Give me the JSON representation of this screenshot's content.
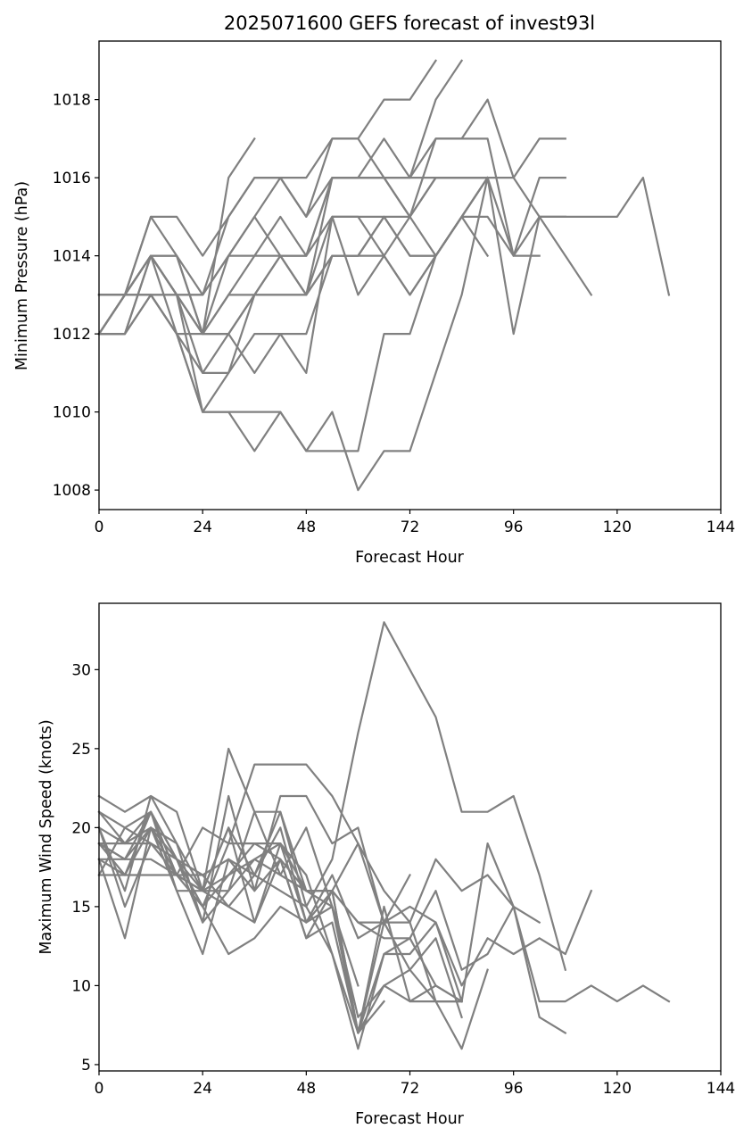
{
  "colors": {
    "series_line": "#808080",
    "axes": "#000000",
    "background": "#ffffff"
  },
  "chart_data": [
    {
      "type": "line",
      "title": "2025071600 GEFS forecast of invest93l",
      "xlabel": "Forecast Hour",
      "ylabel": "Minimum Pressure (hPa)",
      "xlim": [
        0,
        144
      ],
      "ylim": [
        1007.5,
        1019.5
      ],
      "xticks": [
        0,
        24,
        48,
        72,
        96,
        120,
        144
      ],
      "yticks": [
        1008,
        1010,
        1012,
        1014,
        1016,
        1018
      ],
      "grid": false,
      "series": [
        {
          "x": [
            0,
            6,
            12,
            18,
            24,
            30,
            36
          ],
          "y": [
            1012,
            1012,
            1014,
            1014,
            1012,
            1016,
            1017
          ]
        },
        {
          "x": [
            0,
            6,
            12,
            18,
            24,
            30,
            36,
            42,
            48,
            54,
            60,
            66,
            72,
            78
          ],
          "y": [
            1013,
            1013,
            1015,
            1015,
            1014,
            1015,
            1016,
            1016,
            1016,
            1017,
            1017,
            1018,
            1018,
            1019
          ]
        },
        {
          "x": [
            0,
            6,
            12,
            18,
            24,
            30,
            36,
            42,
            48,
            54,
            60,
            66,
            72,
            78,
            84
          ],
          "y": [
            1012,
            1013,
            1014,
            1013,
            1012,
            1014,
            1015,
            1016,
            1015,
            1016,
            1016,
            1017,
            1016,
            1018,
            1019
          ]
        },
        {
          "x": [
            0,
            6,
            12,
            18,
            24,
            30,
            36,
            42,
            48,
            54,
            60,
            66,
            72,
            78,
            84,
            90,
            96,
            102,
            108
          ],
          "y": [
            1012,
            1013,
            1015,
            1014,
            1013,
            1015,
            1016,
            1016,
            1015,
            1017,
            1017,
            1016,
            1016,
            1017,
            1017,
            1018,
            1016,
            1017,
            1017
          ]
        },
        {
          "x": [
            0,
            6,
            12,
            18,
            24,
            30,
            36,
            42,
            48,
            54,
            60,
            66,
            72,
            78,
            84,
            90,
            96,
            102,
            108,
            114,
            120,
            126,
            132
          ],
          "y": [
            1012,
            1013,
            1014,
            1012,
            1012,
            1013,
            1014,
            1015,
            1014,
            1016,
            1016,
            1016,
            1016,
            1016,
            1016,
            1016,
            1016,
            1015,
            1015,
            1015,
            1015,
            1016,
            1013
          ]
        },
        {
          "x": [
            0,
            6,
            12,
            18,
            24,
            30,
            36,
            42,
            48,
            54,
            60,
            66,
            72,
            78,
            84,
            90,
            96,
            102,
            108
          ],
          "y": [
            1013,
            1013,
            1014,
            1013,
            1012,
            1013,
            1013,
            1014,
            1013,
            1015,
            1015,
            1015,
            1015,
            1017,
            1017,
            1017,
            1014,
            1016,
            1016
          ]
        },
        {
          "x": [
            0,
            6,
            12,
            18,
            24,
            30,
            36,
            42,
            48,
            54,
            60,
            66,
            72,
            78,
            84,
            90,
            96,
            102,
            108
          ],
          "y": [
            1012,
            1013,
            1013,
            1013,
            1013,
            1014,
            1015,
            1014,
            1014,
            1015,
            1015,
            1014,
            1015,
            1016,
            1016,
            1016,
            1014,
            1015,
            1015
          ]
        },
        {
          "x": [
            0,
            6,
            12,
            18,
            24,
            30,
            36,
            42,
            48,
            54,
            60,
            66,
            72,
            78,
            84,
            90,
            96,
            102,
            108,
            114
          ],
          "y": [
            1013,
            1013,
            1014,
            1013,
            1013,
            1014,
            1014,
            1014,
            1014,
            1016,
            1016,
            1016,
            1015,
            1016,
            1016,
            1016,
            1012,
            1015,
            1014,
            1013
          ]
        },
        {
          "x": [
            0,
            6,
            12,
            18,
            24,
            30,
            36,
            42,
            48,
            54,
            60,
            66,
            72,
            78,
            84,
            90
          ],
          "y": [
            1013,
            1013,
            1013,
            1012,
            1011,
            1012,
            1013,
            1013,
            1013,
            1014,
            1014,
            1015,
            1014,
            1014,
            1015,
            1014
          ]
        },
        {
          "x": [
            0,
            6,
            12,
            18,
            24,
            30,
            36,
            42,
            48,
            54,
            60,
            66,
            72,
            78,
            84,
            90,
            96,
            102
          ],
          "y": [
            1013,
            1013,
            1013,
            1013,
            1012,
            1012,
            1013,
            1013,
            1013,
            1014,
            1014,
            1015,
            1014,
            1014,
            1015,
            1015,
            1014,
            1014
          ]
        },
        {
          "x": [
            0,
            6,
            12,
            18,
            24,
            30,
            36,
            42,
            48,
            54,
            60,
            66,
            72,
            78,
            84,
            90
          ],
          "y": [
            1012,
            1012,
            1013,
            1012,
            1010,
            1011,
            1012,
            1012,
            1012,
            1014,
            1014,
            1014,
            1013,
            1014,
            1015,
            1016
          ]
        },
        {
          "x": [
            0,
            6,
            12,
            18,
            24,
            30,
            36,
            42,
            48,
            54,
            60,
            66,
            72,
            78,
            84,
            90
          ],
          "y": [
            1013,
            1013,
            1014,
            1013,
            1011,
            1011,
            1013,
            1014,
            1013,
            1016,
            1016,
            1016,
            1015,
            1014,
            1015,
            1016
          ]
        },
        {
          "x": [
            0,
            6,
            12,
            18,
            24,
            30,
            36,
            42,
            48,
            54,
            60,
            66,
            72,
            78,
            84,
            90
          ],
          "y": [
            1012,
            1013,
            1014,
            1014,
            1012,
            1012,
            1011,
            1012,
            1011,
            1015,
            1013,
            1014,
            1013,
            1014,
            1015,
            1016
          ]
        },
        {
          "x": [
            0,
            6,
            12,
            18,
            24,
            30,
            36,
            42,
            48,
            54,
            60,
            66,
            72,
            78,
            84,
            90
          ],
          "y": [
            1012,
            1012,
            1013,
            1012,
            1010,
            1010,
            1010,
            1010,
            1009,
            1010,
            1008,
            1009,
            1009,
            1011,
            1013,
            1016
          ]
        },
        {
          "x": [
            0,
            6,
            12,
            18,
            24,
            30,
            36,
            42,
            48,
            54,
            60,
            66,
            72,
            78,
            84,
            90
          ],
          "y": [
            1012,
            1012,
            1014,
            1013,
            1010,
            1010,
            1009,
            1010,
            1009,
            1009,
            1009,
            1012,
            1012,
            1014,
            1015,
            1016
          ]
        }
      ]
    },
    {
      "type": "line",
      "title": "",
      "xlabel": "Forecast Hour",
      "ylabel": "Maximum Wind Speed (knots)",
      "xlim": [
        0,
        144
      ],
      "ylim": [
        4.6,
        34.2
      ],
      "xticks": [
        0,
        24,
        48,
        72,
        96,
        120,
        144
      ],
      "yticks": [
        5,
        10,
        15,
        20,
        25,
        30
      ],
      "grid": false,
      "series": [
        {
          "x": [
            0,
            6,
            12,
            18,
            24,
            30,
            36,
            42,
            48,
            54,
            60,
            66,
            72,
            78,
            84,
            90,
            96,
            102,
            108
          ],
          "y": [
            22,
            21,
            22,
            21,
            16,
            25,
            21,
            21,
            15,
            18,
            26,
            33,
            30,
            27,
            21,
            21,
            22,
            17,
            11
          ]
        },
        {
          "x": [
            0,
            6,
            12,
            18,
            24,
            30,
            36,
            42,
            48,
            54,
            60,
            66,
            72,
            78,
            84,
            90,
            96,
            102,
            108,
            114,
            120,
            126,
            132
          ],
          "y": [
            21,
            20,
            21,
            18,
            15,
            19,
            24,
            24,
            24,
            22,
            19,
            16,
            14,
            18,
            16,
            17,
            15,
            9,
            9,
            10,
            9,
            10,
            9
          ]
        },
        {
          "x": [
            0,
            6,
            12,
            18,
            24,
            30,
            36,
            42,
            48,
            54,
            60,
            66,
            72,
            78,
            84,
            90,
            96,
            102,
            108,
            114
          ],
          "y": [
            20,
            16,
            22,
            19,
            14,
            22,
            16,
            22,
            22,
            19,
            20,
            14,
            15,
            14,
            10,
            13,
            12,
            13,
            12,
            16
          ]
        },
        {
          "x": [
            0,
            6,
            12,
            18,
            24,
            30,
            36,
            42,
            48,
            54,
            60,
            66,
            72,
            78,
            84,
            90,
            96,
            102
          ],
          "y": [
            19,
            18,
            21,
            17,
            16,
            20,
            17,
            20,
            14,
            16,
            14,
            13,
            13,
            16,
            11,
            12,
            15,
            14
          ]
        },
        {
          "x": [
            0,
            6,
            12,
            18,
            24,
            30,
            36,
            42,
            48,
            54,
            60,
            66,
            72,
            78,
            84,
            90,
            96,
            102,
            108
          ],
          "y": [
            20,
            19,
            20,
            17,
            15,
            17,
            18,
            19,
            16,
            15,
            7,
            12,
            12,
            14,
            9,
            19,
            15,
            8,
            7
          ]
        },
        {
          "x": [
            0,
            6,
            12,
            18,
            24,
            30,
            36,
            42,
            48,
            54,
            60,
            66,
            72,
            78,
            84,
            90
          ],
          "y": [
            19,
            17,
            21,
            18,
            16,
            17,
            19,
            18,
            13,
            14,
            7,
            15,
            9,
            9,
            6,
            11
          ]
        },
        {
          "x": [
            0,
            6,
            12,
            18,
            24,
            30,
            36,
            42,
            48,
            54,
            60,
            66
          ],
          "y": [
            18,
            13,
            20,
            16,
            16,
            15,
            17,
            21,
            16,
            16,
            19,
            14
          ]
        },
        {
          "x": [
            0,
            6,
            12,
            18,
            24,
            30,
            36,
            42,
            48,
            54,
            60
          ],
          "y": [
            17,
            20,
            19,
            18,
            14,
            16,
            18,
            17,
            20,
            15,
            10
          ]
        },
        {
          "x": [
            0,
            6,
            12,
            18,
            24,
            30,
            36,
            42,
            48,
            54,
            60,
            66,
            72
          ],
          "y": [
            19,
            19,
            21,
            16,
            12,
            18,
            16,
            18,
            16,
            16,
            7,
            14,
            17
          ]
        },
        {
          "x": [
            0,
            6,
            12,
            18,
            24,
            30,
            36,
            42,
            48,
            54,
            60,
            66,
            72,
            78,
            84
          ],
          "y": [
            18,
            17,
            20,
            18,
            17,
            18,
            17,
            16,
            15,
            12,
            6,
            12,
            13,
            10,
            9
          ]
        },
        {
          "x": [
            0,
            6,
            12,
            18,
            24,
            30,
            36,
            42,
            48,
            54,
            60,
            66,
            72,
            78,
            84
          ],
          "y": [
            20,
            15,
            19,
            18,
            15,
            12,
            13,
            15,
            14,
            15,
            8,
            10,
            11,
            13,
            8
          ]
        },
        {
          "x": [
            0,
            6,
            12,
            18,
            24,
            30,
            36,
            42,
            48,
            54,
            60,
            66,
            72,
            78,
            84
          ],
          "y": [
            18,
            18,
            18,
            17,
            17,
            15,
            14,
            18,
            13,
            16,
            7,
            10,
            9,
            10,
            9
          ]
        },
        {
          "x": [
            0,
            6,
            12,
            18,
            24,
            30,
            36,
            42,
            48,
            54,
            60,
            66,
            72,
            78,
            84
          ],
          "y": [
            17,
            17,
            17,
            17,
            20,
            19,
            19,
            19,
            14,
            17,
            13,
            14,
            11,
            9,
            9
          ]
        },
        {
          "x": [
            0,
            6,
            12,
            18,
            24,
            30,
            36,
            42,
            48,
            54,
            60,
            66,
            72,
            78,
            84
          ],
          "y": [
            19,
            18,
            20,
            19,
            16,
            16,
            21,
            17,
            16,
            16,
            14,
            14,
            14,
            9,
            9
          ]
        },
        {
          "x": [
            0,
            6,
            12,
            18,
            24,
            30,
            36,
            42,
            48,
            54,
            60,
            66
          ],
          "y": [
            21,
            19,
            19,
            17,
            16,
            20,
            14,
            19,
            17,
            12,
            7,
            9
          ]
        }
      ]
    }
  ]
}
